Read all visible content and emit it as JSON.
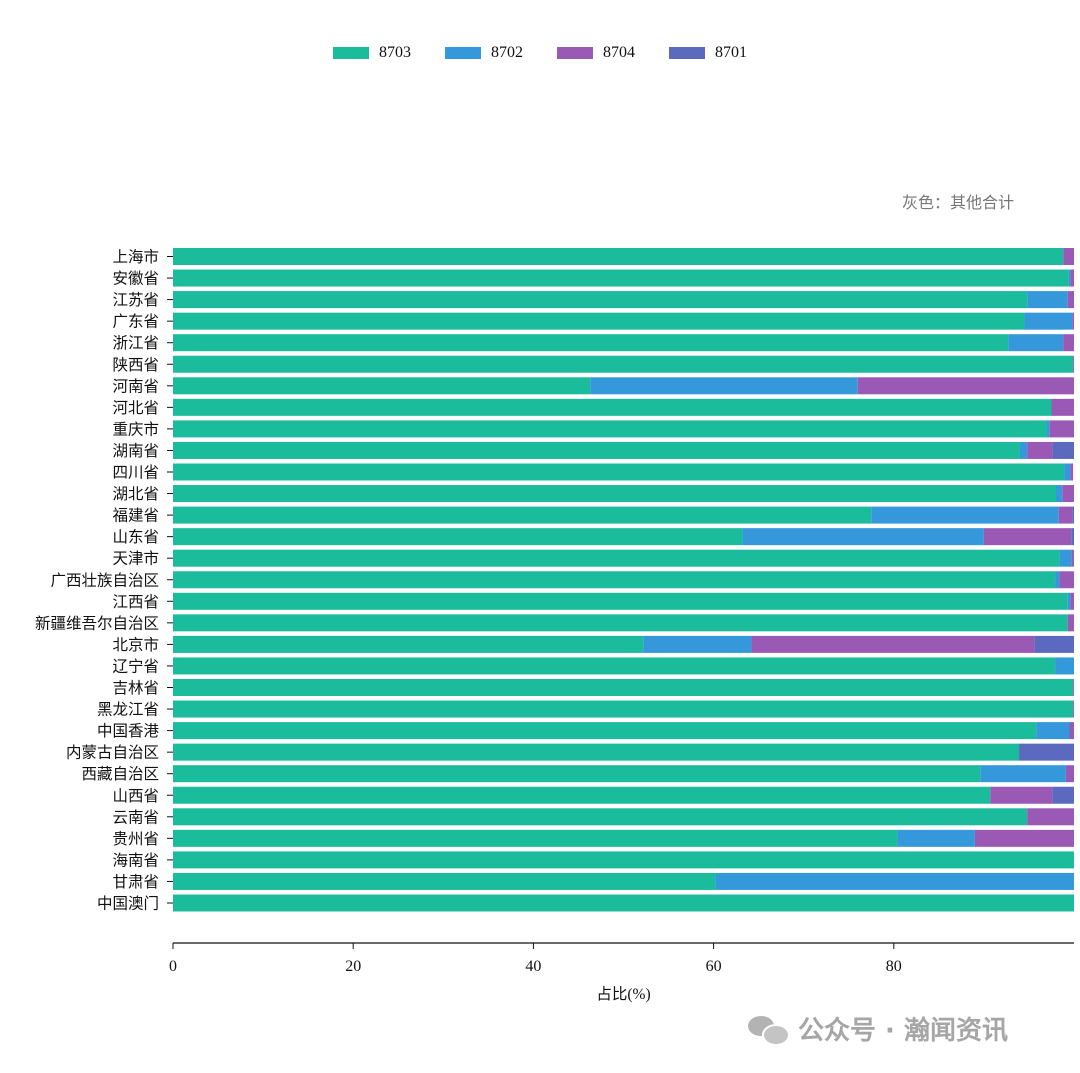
{
  "chart_data": {
    "type": "bar",
    "orientation": "horizontal",
    "stacked": true,
    "annotation": "灰色：其他合计",
    "xlabel": "占比(%)",
    "xlim": [
      0,
      100
    ],
    "xticks": [
      0,
      20,
      40,
      60,
      80
    ],
    "legend_position": "top-center",
    "categories": [
      "上海市",
      "安徽省",
      "江苏省",
      "广东省",
      "浙江省",
      "陕西省",
      "河南省",
      "河北省",
      "重庆市",
      "湖南省",
      "四川省",
      "湖北省",
      "福建省",
      "山东省",
      "天津市",
      "广西壮族自治区",
      "江西省",
      "新疆维吾尔自治区",
      "北京市",
      "辽宁省",
      "吉林省",
      "黑龙江省",
      "中国香港",
      "内蒙古自治区",
      "西藏自治区",
      "山西省",
      "云南省",
      "贵州省",
      "海南省",
      "甘肃省",
      "中国澳门"
    ],
    "series": [
      {
        "name": "8703",
        "color": "#1abc9c",
        "values": [
          98.8,
          99.4,
          94.8,
          94.5,
          92.7,
          99.9,
          46.3,
          97.5,
          97.0,
          94.0,
          98.9,
          98.0,
          77.5,
          63.2,
          98.4,
          97.9,
          99.3,
          99.3,
          52.2,
          97.9,
          99.9,
          99.9,
          95.8,
          93.9,
          89.6,
          90.7,
          94.8,
          80.4,
          100,
          60.2,
          100
        ]
      },
      {
        "name": "8702",
        "color": "#3498db",
        "values": [
          0,
          0.2,
          4.5,
          5.3,
          6.1,
          0,
          29.7,
          0,
          0.3,
          0.8,
          0.7,
          0.7,
          20.8,
          26.8,
          1.3,
          0.5,
          0.3,
          0,
          12.0,
          2.1,
          0,
          0,
          3.7,
          0,
          9.5,
          0,
          0,
          8.6,
          0,
          39.8,
          0
        ]
      },
      {
        "name": "8704",
        "color": "#9b59b6",
        "values": [
          1.2,
          0.4,
          0.7,
          0.2,
          1.2,
          0.1,
          24.0,
          2.5,
          2.7,
          2.8,
          0.3,
          1.3,
          1.5,
          9.7,
          0.2,
          1.6,
          0.4,
          0.7,
          31.4,
          0,
          0.1,
          0.1,
          0.5,
          0,
          0.9,
          6.9,
          5.2,
          11.0,
          0,
          0,
          0
        ]
      },
      {
        "name": "8701",
        "color": "#5b6abf",
        "values": [
          0,
          0,
          0,
          0,
          0,
          0,
          0,
          0,
          0,
          2.4,
          0,
          0,
          0.2,
          0.3,
          0.1,
          0,
          0,
          0,
          4.4,
          0,
          0,
          0,
          0,
          6.1,
          0,
          2.4,
          0,
          0,
          0,
          0,
          0
        ]
      }
    ]
  },
  "watermark": {
    "icon": "wechat-icon",
    "text": "公众号 · 瀚闻资讯"
  }
}
